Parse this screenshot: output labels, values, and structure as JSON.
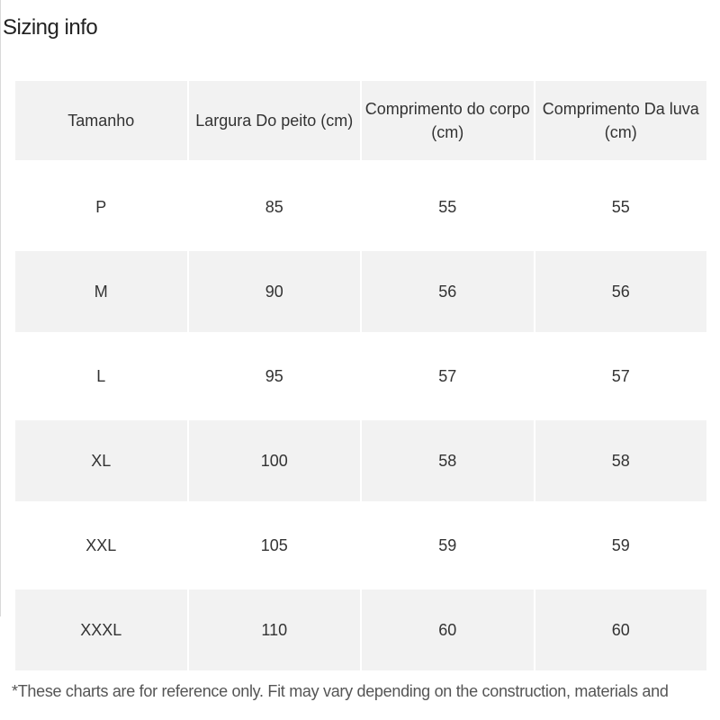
{
  "title": "Sizing info",
  "table": {
    "headers": [
      "Tamanho",
      "Largura Do peito (cm)",
      "Comprimento do corpo (cm)",
      "Comprimento Da luva (cm)"
    ],
    "rows": [
      [
        "P",
        "85",
        "55",
        "55"
      ],
      [
        "M",
        "90",
        "56",
        "56"
      ],
      [
        "L",
        "95",
        "57",
        "57"
      ],
      [
        "XL",
        "100",
        "58",
        "58"
      ],
      [
        "XXL",
        "105",
        "59",
        "59"
      ],
      [
        "XXXL",
        "110",
        "60",
        "60"
      ]
    ]
  },
  "footnote": "*These charts are for reference only. Fit may vary depending on the construction, materials and"
}
